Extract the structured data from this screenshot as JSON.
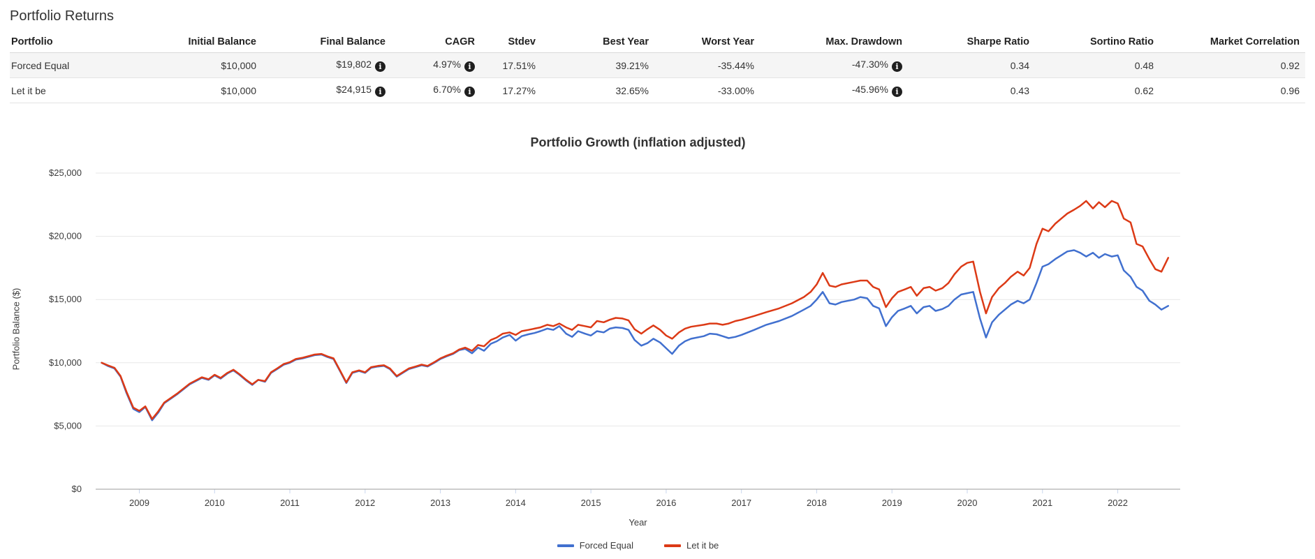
{
  "page": {
    "title": "Portfolio Returns"
  },
  "icons": {
    "info": "i"
  },
  "table": {
    "columns": [
      "Portfolio",
      "Initial Balance",
      "Final Balance",
      "CAGR",
      "Stdev",
      "Best Year",
      "Worst Year",
      "Max. Drawdown",
      "Sharpe Ratio",
      "Sortino Ratio",
      "Market Correlation"
    ],
    "rows": [
      {
        "portfolio": "Forced Equal",
        "initial_balance": "$10,000",
        "final_balance": "$19,802",
        "cagr": "4.97%",
        "stdev": "17.51%",
        "best_year": "39.21%",
        "worst_year": "-35.44%",
        "max_drawdown": "-47.30%",
        "sharpe_ratio": "0.34",
        "sortino_ratio": "0.48",
        "market_correlation": "0.92"
      },
      {
        "portfolio": "Let it be",
        "initial_balance": "$10,000",
        "final_balance": "$24,915",
        "cagr": "6.70%",
        "stdev": "17.27%",
        "best_year": "32.65%",
        "worst_year": "-33.00%",
        "max_drawdown": "-45.96%",
        "sharpe_ratio": "0.43",
        "sortino_ratio": "0.62",
        "market_correlation": "0.96"
      }
    ]
  },
  "chart_data": {
    "type": "line",
    "title": "Portfolio Growth (inflation adjusted)",
    "xlabel": "Year",
    "ylabel": "Portfolio Balance ($)",
    "grid": true,
    "legend_position": "bottom",
    "xlim": [
      2008.42,
      2022.83
    ],
    "ylim": [
      0,
      25000
    ],
    "x_ticks": [
      2009,
      2010,
      2011,
      2012,
      2013,
      2014,
      2015,
      2016,
      2017,
      2018,
      2019,
      2020,
      2021,
      2022
    ],
    "y_ticks": [
      {
        "value": 0,
        "label": "$0"
      },
      {
        "value": 5000,
        "label": "$5,000"
      },
      {
        "value": 10000,
        "label": "$10,000"
      },
      {
        "value": 15000,
        "label": "$15,000"
      },
      {
        "value": 20000,
        "label": "$20,000"
      },
      {
        "value": 25000,
        "label": "$25,000"
      }
    ],
    "series": [
      {
        "name": "Forced Equal",
        "color": "#4170cf"
      },
      {
        "name": "Let it be",
        "color": "#dc3a16"
      }
    ],
    "points_format": [
      "year",
      "Forced Equal ($)",
      "Let it be ($)"
    ],
    "points": [
      [
        2008.5,
        10000,
        10000
      ],
      [
        2008.58,
        9750,
        9800
      ],
      [
        2008.67,
        9550,
        9600
      ],
      [
        2008.75,
        8900,
        8950
      ],
      [
        2008.83,
        7600,
        7700
      ],
      [
        2008.92,
        6350,
        6450
      ],
      [
        2009.0,
        6100,
        6200
      ],
      [
        2009.08,
        6500,
        6550
      ],
      [
        2009.17,
        5450,
        5550
      ],
      [
        2009.25,
        6050,
        6150
      ],
      [
        2009.33,
        6800,
        6850
      ],
      [
        2009.5,
        7500,
        7550
      ],
      [
        2009.67,
        8300,
        8350
      ],
      [
        2009.75,
        8550,
        8600
      ],
      [
        2009.83,
        8800,
        8850
      ],
      [
        2009.92,
        8650,
        8700
      ],
      [
        2010.0,
        9000,
        9050
      ],
      [
        2010.08,
        8750,
        8800
      ],
      [
        2010.17,
        9150,
        9200
      ],
      [
        2010.25,
        9400,
        9450
      ],
      [
        2010.33,
        9050,
        9100
      ],
      [
        2010.42,
        8600,
        8650
      ],
      [
        2010.5,
        8250,
        8300
      ],
      [
        2010.58,
        8650,
        8650
      ],
      [
        2010.67,
        8500,
        8550
      ],
      [
        2010.75,
        9200,
        9250
      ],
      [
        2010.83,
        9500,
        9550
      ],
      [
        2010.92,
        9850,
        9900
      ],
      [
        2011.0,
        10000,
        10050
      ],
      [
        2011.08,
        10250,
        10300
      ],
      [
        2011.17,
        10350,
        10400
      ],
      [
        2011.33,
        10600,
        10650
      ],
      [
        2011.42,
        10650,
        10700
      ],
      [
        2011.5,
        10450,
        10500
      ],
      [
        2011.58,
        10300,
        10350
      ],
      [
        2011.67,
        9300,
        9350
      ],
      [
        2011.75,
        8400,
        8450
      ],
      [
        2011.83,
        9200,
        9250
      ],
      [
        2011.92,
        9350,
        9400
      ],
      [
        2012.0,
        9200,
        9250
      ],
      [
        2012.08,
        9600,
        9650
      ],
      [
        2012.17,
        9700,
        9750
      ],
      [
        2012.25,
        9750,
        9800
      ],
      [
        2012.33,
        9500,
        9550
      ],
      [
        2012.42,
        8900,
        8950
      ],
      [
        2012.5,
        9200,
        9250
      ],
      [
        2012.58,
        9500,
        9550
      ],
      [
        2012.67,
        9650,
        9700
      ],
      [
        2012.75,
        9800,
        9850
      ],
      [
        2012.83,
        9700,
        9750
      ],
      [
        2012.92,
        10000,
        10050
      ],
      [
        2013.0,
        10300,
        10350
      ],
      [
        2013.08,
        10500,
        10550
      ],
      [
        2013.17,
        10700,
        10750
      ],
      [
        2013.25,
        11000,
        11050
      ],
      [
        2013.33,
        11100,
        11200
      ],
      [
        2013.42,
        10750,
        10950
      ],
      [
        2013.5,
        11200,
        11400
      ],
      [
        2013.58,
        10950,
        11300
      ],
      [
        2013.67,
        11500,
        11800
      ],
      [
        2013.75,
        11700,
        12000
      ],
      [
        2013.83,
        12000,
        12300
      ],
      [
        2013.92,
        12200,
        12400
      ],
      [
        2014.0,
        11750,
        12200
      ],
      [
        2014.08,
        12100,
        12500
      ],
      [
        2014.17,
        12250,
        12600
      ],
      [
        2014.25,
        12350,
        12700
      ],
      [
        2014.33,
        12500,
        12800
      ],
      [
        2014.42,
        12700,
        13000
      ],
      [
        2014.5,
        12600,
        12900
      ],
      [
        2014.58,
        12900,
        13100
      ],
      [
        2014.67,
        12300,
        12800
      ],
      [
        2014.75,
        12050,
        12600
      ],
      [
        2014.83,
        12500,
        13000
      ],
      [
        2014.92,
        12300,
        12900
      ],
      [
        2015.0,
        12150,
        12800
      ],
      [
        2015.08,
        12500,
        13300
      ],
      [
        2015.17,
        12400,
        13200
      ],
      [
        2015.25,
        12700,
        13400
      ],
      [
        2015.33,
        12800,
        13550
      ],
      [
        2015.42,
        12750,
        13500
      ],
      [
        2015.5,
        12600,
        13350
      ],
      [
        2015.58,
        11800,
        12650
      ],
      [
        2015.67,
        11350,
        12300
      ],
      [
        2015.75,
        11550,
        12650
      ],
      [
        2015.83,
        11900,
        12950
      ],
      [
        2015.92,
        11600,
        12600
      ],
      [
        2016.0,
        11150,
        12150
      ],
      [
        2016.08,
        10700,
        11900
      ],
      [
        2016.17,
        11350,
        12400
      ],
      [
        2016.25,
        11700,
        12700
      ],
      [
        2016.33,
        11900,
        12850
      ],
      [
        2016.5,
        12100,
        13000
      ],
      [
        2016.58,
        12300,
        13100
      ],
      [
        2016.67,
        12250,
        13100
      ],
      [
        2016.75,
        12100,
        13000
      ],
      [
        2016.83,
        11950,
        13100
      ],
      [
        2016.92,
        12050,
        13300
      ],
      [
        2017.0,
        12200,
        13400
      ],
      [
        2017.17,
        12600,
        13700
      ],
      [
        2017.33,
        13000,
        14000
      ],
      [
        2017.5,
        13300,
        14300
      ],
      [
        2017.67,
        13700,
        14700
      ],
      [
        2017.83,
        14200,
        15200
      ],
      [
        2017.92,
        14500,
        15600
      ],
      [
        2018.0,
        15000,
        16200
      ],
      [
        2018.08,
        15600,
        17100
      ],
      [
        2018.17,
        14700,
        16100
      ],
      [
        2018.25,
        14600,
        16000
      ],
      [
        2018.33,
        14800,
        16200
      ],
      [
        2018.5,
        15000,
        16400
      ],
      [
        2018.58,
        15200,
        16500
      ],
      [
        2018.67,
        15100,
        16500
      ],
      [
        2018.75,
        14500,
        16000
      ],
      [
        2018.83,
        14300,
        15800
      ],
      [
        2018.92,
        12900,
        14400
      ],
      [
        2019.0,
        13600,
        15100
      ],
      [
        2019.08,
        14100,
        15600
      ],
      [
        2019.17,
        14300,
        15800
      ],
      [
        2019.25,
        14500,
        16000
      ],
      [
        2019.33,
        13900,
        15300
      ],
      [
        2019.42,
        14400,
        15900
      ],
      [
        2019.5,
        14500,
        16000
      ],
      [
        2019.58,
        14100,
        15700
      ],
      [
        2019.67,
        14250,
        15900
      ],
      [
        2019.75,
        14500,
        16300
      ],
      [
        2019.83,
        15000,
        17000
      ],
      [
        2019.92,
        15400,
        17600
      ],
      [
        2020.0,
        15500,
        17900
      ],
      [
        2020.08,
        15600,
        18000
      ],
      [
        2020.17,
        13500,
        15600
      ],
      [
        2020.25,
        12000,
        13900
      ],
      [
        2020.33,
        13200,
        15200
      ],
      [
        2020.42,
        13800,
        15900
      ],
      [
        2020.5,
        14200,
        16300
      ],
      [
        2020.58,
        14600,
        16800
      ],
      [
        2020.67,
        14900,
        17200
      ],
      [
        2020.75,
        14700,
        16900
      ],
      [
        2020.83,
        15000,
        17500
      ],
      [
        2020.92,
        16300,
        19400
      ],
      [
        2021.0,
        17600,
        20600
      ],
      [
        2021.08,
        17800,
        20400
      ],
      [
        2021.17,
        18200,
        21000
      ],
      [
        2021.25,
        18500,
        21400
      ],
      [
        2021.33,
        18800,
        21800
      ],
      [
        2021.42,
        18900,
        22100
      ],
      [
        2021.5,
        18700,
        22400
      ],
      [
        2021.58,
        18400,
        22800
      ],
      [
        2021.67,
        18700,
        22200
      ],
      [
        2021.75,
        18300,
        22700
      ],
      [
        2021.83,
        18600,
        22300
      ],
      [
        2021.92,
        18400,
        22800
      ],
      [
        2022.0,
        18500,
        22600
      ],
      [
        2022.08,
        17300,
        21400
      ],
      [
        2022.17,
        16800,
        21100
      ],
      [
        2022.25,
        16000,
        19400
      ],
      [
        2022.33,
        15700,
        19200
      ],
      [
        2022.42,
        14900,
        18200
      ],
      [
        2022.5,
        14600,
        17400
      ],
      [
        2022.58,
        14200,
        17200
      ],
      [
        2022.67,
        14500,
        18300
      ]
    ],
    "colors": {
      "grid": "#e7e7e7",
      "axis": "#9b9b9b",
      "tick": "#c9d6ee",
      "text": "#3c3c3c"
    }
  }
}
